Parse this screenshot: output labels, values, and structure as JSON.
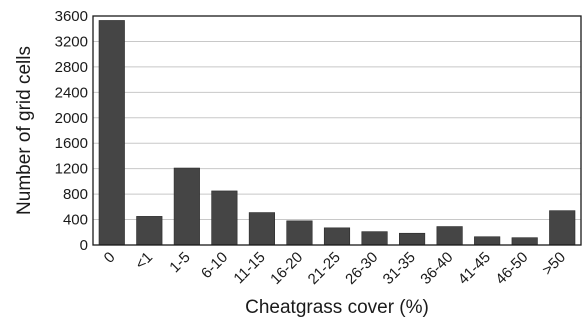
{
  "chart_data": {
    "type": "bar",
    "title": "",
    "xlabel": "Cheatgrass cover (%)",
    "ylabel": "Number of grid cells",
    "categories": [
      "0",
      "<1",
      "1-5",
      "6-10",
      "11-15",
      "16-20",
      "21-25",
      "26-30",
      "31-35",
      "36-40",
      "41-45",
      "46-50",
      ">50"
    ],
    "values": [
      3530,
      450,
      1210,
      850,
      510,
      380,
      270,
      210,
      185,
      290,
      130,
      115,
      540
    ],
    "ylim": [
      0,
      3600
    ],
    "yticks": [
      0,
      400,
      800,
      1200,
      1600,
      2000,
      2400,
      2800,
      3200,
      3600
    ],
    "grid": true,
    "bar_color": "#454545"
  }
}
